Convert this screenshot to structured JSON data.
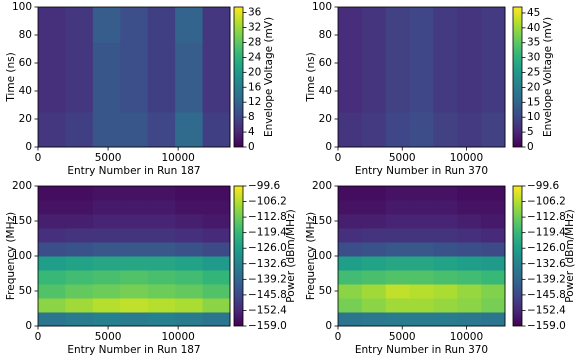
{
  "chart_data": [
    {
      "type": "heatmap",
      "xlabel": "Entry Number in Run 187",
      "ylabel": "Time (ns)",
      "colorbar_label": "Envelope Voltage (mV)",
      "colormap": "viridis",
      "xlim": [
        0,
        13700
      ],
      "ylim": [
        0,
        100
      ],
      "xticks": [
        0,
        5000,
        10000
      ],
      "yticks": [
        0,
        20,
        40,
        60,
        80,
        100
      ],
      "zlim": [
        0,
        37.5
      ],
      "colorbar_ticks": [
        0,
        4,
        8,
        12,
        16,
        20,
        24,
        28,
        32,
        36
      ],
      "z": [
        [
          6,
          7,
          10,
          10,
          8,
          13,
          7
        ],
        [
          5,
          6,
          10,
          9,
          7,
          11,
          6
        ],
        [
          5,
          6,
          10,
          9,
          7,
          11,
          6
        ],
        [
          5,
          6,
          11,
          9,
          7,
          12,
          6
        ]
      ]
    },
    {
      "type": "heatmap",
      "xlabel": "Entry Number in Run 370",
      "ylabel": "Time (ns)",
      "colorbar_label": "Envelope Voltage (mV)",
      "colormap": "viridis",
      "xlim": [
        0,
        13000
      ],
      "ylim": [
        0,
        100
      ],
      "xticks": [
        0,
        5000,
        10000
      ],
      "yticks": [
        0,
        20,
        40,
        60,
        80,
        100
      ],
      "zlim": [
        0,
        47
      ],
      "colorbar_ticks": [
        0,
        5,
        10,
        15,
        20,
        25,
        30,
        35,
        40,
        45
      ],
      "z": [
        [
          7,
          8,
          10,
          11,
          9,
          8,
          9
        ],
        [
          6,
          7,
          9,
          10,
          8,
          7,
          8
        ],
        [
          6,
          7,
          9,
          10,
          8,
          7,
          8
        ],
        [
          6,
          7,
          9,
          10,
          8,
          7,
          8
        ]
      ]
    },
    {
      "type": "heatmap",
      "xlabel": "Entry Number in Run 187",
      "ylabel": "Frequency (MHz)",
      "colorbar_label": "Power (dBm/MHz)",
      "colormap": "viridis",
      "xlim": [
        0,
        13700
      ],
      "ylim": [
        0,
        200
      ],
      "xticks": [
        0,
        5000,
        10000
      ],
      "yticks": [
        0,
        50,
        100,
        150,
        200
      ],
      "zlim": [
        -159.0,
        -99.6
      ],
      "colorbar_ticks": [
        {
          "value": -159.0,
          "label": "−159.0"
        },
        {
          "value": -152.4,
          "label": "−152.4"
        },
        {
          "value": -145.8,
          "label": "−145.8"
        },
        {
          "value": -139.2,
          "label": "−139.2"
        },
        {
          "value": -132.6,
          "label": "−132.6"
        },
        {
          "value": -126.0,
          "label": "−126.0"
        },
        {
          "value": -119.4,
          "label": "−119.4"
        },
        {
          "value": -112.8,
          "label": "−112.8"
        },
        {
          "value": -106.2,
          "label": "−106.2"
        },
        {
          "value": -99.6,
          "label": "−99.6"
        }
      ],
      "z": [
        [
          -136,
          -134,
          -133,
          -134,
          -133,
          -134,
          -136
        ],
        [
          -110,
          -108,
          -106,
          -105,
          -106,
          -107,
          -110
        ],
        [
          -116,
          -114,
          -113,
          -112,
          -113,
          -114,
          -116
        ],
        [
          -119,
          -118,
          -117,
          -116,
          -117,
          -118,
          -120
        ],
        [
          -126,
          -125,
          -124,
          -124,
          -124,
          -125,
          -127
        ],
        [
          -145,
          -144,
          -143,
          -143,
          -143,
          -144,
          -146
        ],
        [
          -151,
          -150,
          -150,
          -150,
          -150,
          -151,
          -152
        ],
        [
          -154,
          -154,
          -153,
          -153,
          -153,
          -154,
          -155
        ],
        [
          -156,
          -156,
          -155,
          -155,
          -155,
          -156,
          -156
        ],
        [
          -157,
          -157,
          -156,
          -156,
          -156,
          -157,
          -157
        ]
      ]
    },
    {
      "type": "heatmap",
      "xlabel": "Entry Number in Run 370",
      "ylabel": "Frequency (MHz)",
      "colorbar_label": "Power (dBm/MHz)",
      "colormap": "viridis",
      "xlim": [
        0,
        13000
      ],
      "ylim": [
        0,
        200
      ],
      "xticks": [
        0,
        5000,
        10000
      ],
      "yticks": [
        0,
        50,
        100,
        150,
        200
      ],
      "zlim": [
        -159.0,
        -99.6
      ],
      "colorbar_ticks": [
        {
          "value": -159.0,
          "label": "−159.0"
        },
        {
          "value": -152.4,
          "label": "−152.4"
        },
        {
          "value": -145.8,
          "label": "−145.8"
        },
        {
          "value": -139.2,
          "label": "−139.2"
        },
        {
          "value": -132.6,
          "label": "−132.6"
        },
        {
          "value": -126.0,
          "label": "−126.0"
        },
        {
          "value": -119.4,
          "label": "−119.4"
        },
        {
          "value": -112.8,
          "label": "−112.8"
        },
        {
          "value": -106.2,
          "label": "−106.2"
        },
        {
          "value": -99.6,
          "label": "−99.6"
        }
      ],
      "z": [
        [
          -136,
          -135,
          -134,
          -134,
          -134,
          -135,
          -136
        ],
        [
          -112,
          -110,
          -108,
          -108,
          -109,
          -110,
          -112
        ],
        [
          -110,
          -108,
          -105,
          -106,
          -107,
          -109,
          -111
        ],
        [
          -118,
          -117,
          -116,
          -116,
          -117,
          -118,
          -119
        ],
        [
          -126,
          -125,
          -124,
          -124,
          -125,
          -126,
          -127
        ],
        [
          -145,
          -144,
          -143,
          -143,
          -144,
          -145,
          -146
        ],
        [
          -151,
          -150,
          -150,
          -150,
          -150,
          -151,
          -152
        ],
        [
          -154,
          -154,
          -153,
          -153,
          -153,
          -154,
          -155
        ],
        [
          -156,
          -156,
          -155,
          -155,
          -155,
          -156,
          -156
        ],
        [
          -157,
          -157,
          -156,
          -156,
          -156,
          -157,
          -157
        ]
      ]
    }
  ]
}
